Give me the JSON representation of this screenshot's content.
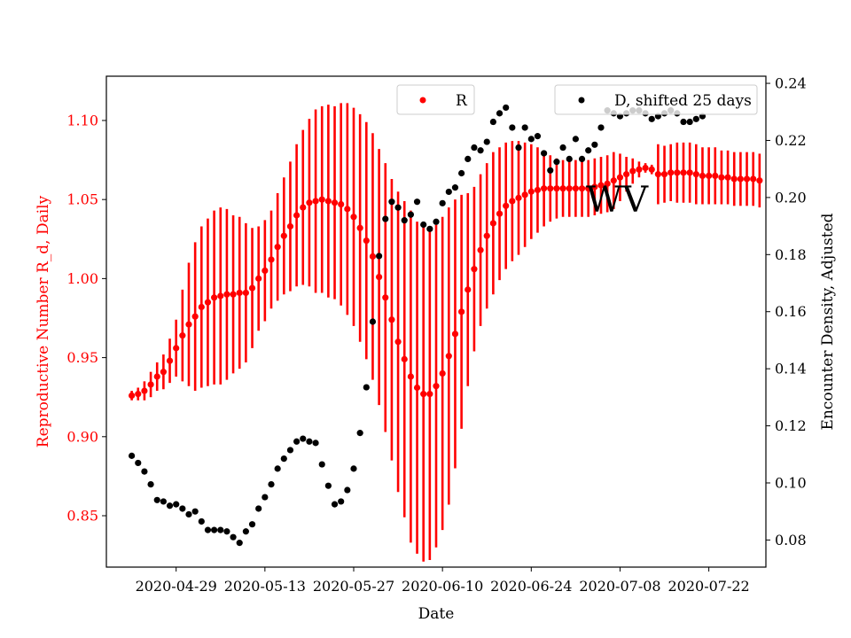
{
  "chart_data": {
    "type": "scatter",
    "xlabel": "Date",
    "ylabel_left": "Reproductive Number R_d, Daily",
    "ylabel_right": "Encounter Density, Adjusted",
    "x_ticks": [
      "2020-04-29",
      "2020-05-13",
      "2020-05-27",
      "2020-06-10",
      "2020-06-24",
      "2020-07-08",
      "2020-07-22"
    ],
    "y_ticks_left": [
      "0.85",
      "0.90",
      "0.95",
      "1.00",
      "1.05",
      "1.10"
    ],
    "y_ticks_right": [
      "0.08",
      "0.10",
      "0.12",
      "0.14",
      "0.16",
      "0.18",
      "0.20",
      "0.22",
      "0.24"
    ],
    "xlim": [
      "2020-04-18",
      "2020-07-31"
    ],
    "ylim_left": [
      0.8175,
      1.128
    ],
    "ylim_right": [
      0.0705,
      0.2425
    ],
    "annotation": "WV",
    "legend_r": {
      "label": "R",
      "placement": "top-center"
    },
    "legend_d": {
      "label": "D, shifted 25 days",
      "placement": "top-right"
    },
    "colors": {
      "r": "#ff0000",
      "d": "#000000"
    },
    "grid": false,
    "r_series": {
      "name": "R",
      "start_date": "2020-04-22",
      "values": [
        0.926,
        0.927,
        0.929,
        0.933,
        0.938,
        0.941,
        0.948,
        0.956,
        0.964,
        0.971,
        0.976,
        0.982,
        0.985,
        0.988,
        0.989,
        0.99,
        0.99,
        0.991,
        0.991,
        0.994,
        1.0,
        1.005,
        1.012,
        1.02,
        1.027,
        1.033,
        1.04,
        1.045,
        1.048,
        1.049,
        1.05,
        1.049,
        1.048,
        1.047,
        1.044,
        1.039,
        1.032,
        1.024,
        1.014,
        1.001,
        0.988,
        0.974,
        0.96,
        0.949,
        0.938,
        0.931,
        0.927,
        0.927,
        0.932,
        0.94,
        0.951,
        0.965,
        0.979,
        0.993,
        1.006,
        1.018,
        1.027,
        1.035,
        1.041,
        1.046,
        1.049,
        1.051,
        1.053,
        1.055,
        1.056,
        1.057,
        1.057,
        1.057,
        1.057,
        1.057,
        1.057,
        1.057,
        1.057,
        1.058,
        1.059,
        1.06,
        1.062,
        1.064,
        1.066,
        1.068,
        1.069,
        1.07,
        1.069,
        1.066,
        1.066,
        1.067,
        1.067,
        1.067,
        1.067,
        1.066,
        1.065,
        1.065,
        1.065,
        1.064,
        1.064,
        1.063,
        1.063,
        1.063,
        1.063,
        1.062
      ],
      "error": [
        0.003,
        0.004,
        0.006,
        0.008,
        0.009,
        0.011,
        0.014,
        0.018,
        0.029,
        0.039,
        0.047,
        0.051,
        0.053,
        0.055,
        0.056,
        0.054,
        0.05,
        0.048,
        0.044,
        0.038,
        0.033,
        0.032,
        0.031,
        0.034,
        0.037,
        0.041,
        0.045,
        0.049,
        0.053,
        0.058,
        0.059,
        0.061,
        0.061,
        0.064,
        0.067,
        0.069,
        0.072,
        0.075,
        0.078,
        0.081,
        0.085,
        0.089,
        0.095,
        0.1,
        0.105,
        0.105,
        0.106,
        0.105,
        0.102,
        0.099,
        0.094,
        0.085,
        0.074,
        0.061,
        0.052,
        0.048,
        0.046,
        0.045,
        0.042,
        0.04,
        0.038,
        0.036,
        0.033,
        0.03,
        0.027,
        0.024,
        0.021,
        0.019,
        0.018,
        0.018,
        0.018,
        0.018,
        0.018,
        0.018,
        0.018,
        0.018,
        0.018,
        0.015,
        0.011,
        0.008,
        0.005,
        0.003,
        0.003,
        0.019,
        0.018,
        0.018,
        0.019,
        0.019,
        0.019,
        0.019,
        0.018,
        0.018,
        0.018,
        0.017,
        0.017,
        0.017,
        0.017,
        0.017,
        0.017,
        0.017
      ]
    },
    "d_series": {
      "name": "D, shifted 25 days",
      "start_date": "2020-04-22",
      "values": [
        0.1095,
        0.107,
        0.104,
        0.0995,
        0.094,
        0.0935,
        0.092,
        0.0925,
        0.091,
        0.089,
        0.09,
        0.0865,
        0.0835,
        0.0835,
        0.0835,
        0.083,
        0.081,
        0.079,
        0.083,
        0.0855,
        0.091,
        0.095,
        0.0995,
        0.105,
        0.1085,
        0.1115,
        0.1145,
        0.1155,
        0.1145,
        0.114,
        0.1065,
        0.099,
        0.0925,
        0.0935,
        0.0975,
        0.105,
        0.1175,
        0.1335,
        0.1565,
        0.1795,
        0.1925,
        0.1985,
        0.1965,
        0.192,
        0.194,
        0.1985,
        0.1905,
        0.189,
        0.1915,
        0.198,
        0.202,
        0.2035,
        0.2085,
        0.2135,
        0.2175,
        0.2165,
        0.2195,
        0.2265,
        0.2295,
        0.2315,
        0.2245,
        0.2175,
        0.2245,
        0.2205,
        0.2215,
        0.2155,
        0.2095,
        0.2125,
        0.2175,
        0.2135,
        0.2205,
        0.2135,
        0.2165,
        0.2185,
        0.2245,
        0.2305,
        0.2295,
        0.2285,
        0.2295,
        0.2305,
        0.2305,
        0.2295,
        0.2275,
        0.2285,
        0.2295,
        0.2305,
        0.2295,
        0.2265,
        0.2265,
        0.2275,
        0.2285
      ]
    }
  }
}
